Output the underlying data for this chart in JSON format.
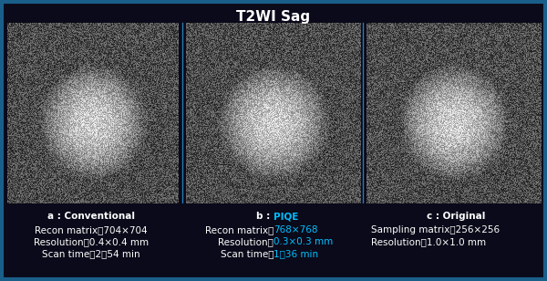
{
  "title": "T2WI Sag",
  "background_color": "#0a0a1a",
  "border_color": "#1a5f8a",
  "title_color": "#ffffff",
  "title_fontsize": 11,
  "panel_a": {
    "label_prefix": "a : ",
    "label_main": "Conventional",
    "line1": "Recon matrix：704×704",
    "line2": "Resolution：0.4×0.4 mm",
    "line3": "Scan time：2：54 min",
    "text_color": "#ffffff"
  },
  "panel_b": {
    "label_prefix": "b : ",
    "label_main": "PIQE",
    "label_main_color": "#00bfff",
    "line1_prefix": "Recon matrix：",
    "line1_highlight": "768×768",
    "line1_suffix": "",
    "line2_prefix": "Resolution：",
    "line2_highlight": "0.3×0.3 mm",
    "line3_prefix": "Scan time：",
    "line3_highlight": "1：36 min",
    "highlight_color": "#00bfff",
    "text_color": "#ffffff"
  },
  "panel_c": {
    "label_prefix": "c : ",
    "label_main": "Original",
    "line1": "Sampling matrix：256×256",
    "line2": "Resolution：1.0×1.0 mm",
    "text_color": "#ffffff"
  },
  "image_bg": "#1a1a1a",
  "border_width": 3
}
